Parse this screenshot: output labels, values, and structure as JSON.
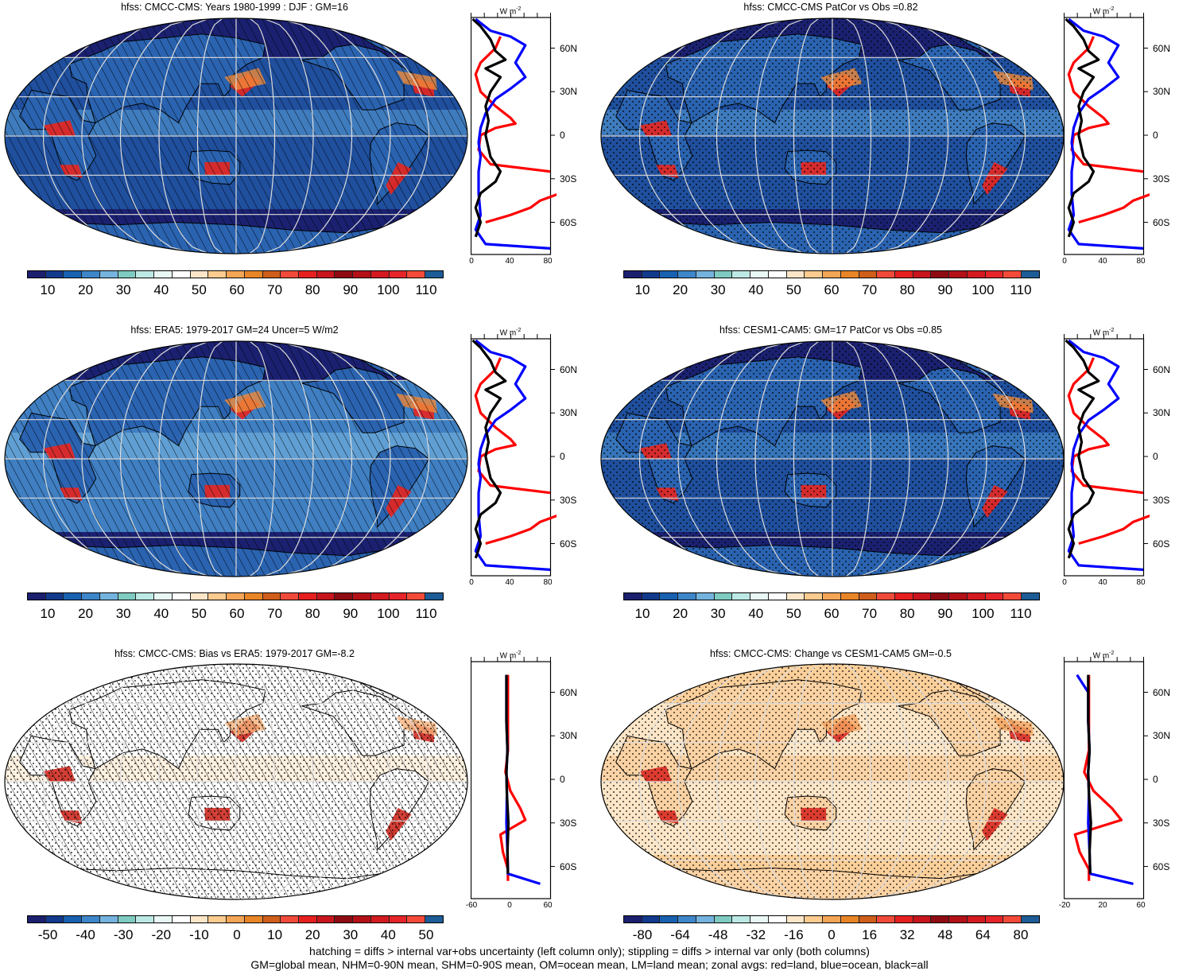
{
  "figure": {
    "panels": [
      {
        "id": "p1",
        "title": "hfss: CMCC-CMS: Years 1980-1999 : DJF : GM=16",
        "colorbar_labels": [
          "10",
          "20",
          "30",
          "40",
          "50",
          "60",
          "70",
          "80",
          "90",
          "100",
          "110"
        ],
        "colorbar_colors": [
          "#1a237e",
          "#0d47a1",
          "#1565c0",
          "#3a86c8",
          "#6fb2df",
          "#7fcfc8",
          "#b4e6e2",
          "#e1f5f3",
          "#fbfbf4",
          "#fbe5c3",
          "#fbc98e",
          "#f1a24e",
          "#e67e22",
          "#c7571b",
          "#ee3d35",
          "#e8181b",
          "#c1121c",
          "#8b0b12",
          "#b0101a",
          "#cf1a20",
          "#e51c24",
          "#f23a2c",
          "#155a9b"
        ],
        "hatching": true,
        "stippling": false,
        "zonal": {
          "unit": "W m-2",
          "x_ticks": [
            "0",
            "40",
            "80"
          ],
          "lat_ticks": [
            "60N",
            "30N",
            "0",
            "30S",
            "60S"
          ]
        }
      },
      {
        "id": "p2",
        "title": "hfss: CMCC-CMS PatCor vs Obs =0.82",
        "colorbar_labels": [
          "10",
          "20",
          "30",
          "40",
          "50",
          "60",
          "70",
          "80",
          "90",
          "100",
          "110"
        ],
        "hatching": false,
        "stippling": true,
        "zonal": {
          "unit": "W m-2",
          "x_ticks": [
            "0",
            "40",
            "80"
          ],
          "lat_ticks": [
            "60N",
            "30N",
            "0",
            "30S",
            "60S"
          ]
        }
      },
      {
        "id": "p3",
        "title": "hfss: ERA5: 1979-2017 GM=24 Uncer=5 W/m2",
        "colorbar_labels": [
          "10",
          "20",
          "30",
          "40",
          "50",
          "60",
          "70",
          "80",
          "90",
          "100",
          "110"
        ],
        "hatching": true,
        "stippling": false,
        "zonal": {
          "unit": "W m-2",
          "x_ticks": [
            "0",
            "40",
            "80"
          ],
          "lat_ticks": [
            "60N",
            "30N",
            "0",
            "30S",
            "60S"
          ]
        }
      },
      {
        "id": "p4",
        "title": "hfss: CESM1-CAM5: GM=17 PatCor vs Obs =0.85",
        "colorbar_labels": [
          "10",
          "20",
          "30",
          "40",
          "50",
          "60",
          "70",
          "80",
          "90",
          "100",
          "110"
        ],
        "hatching": false,
        "stippling": true,
        "zonal": {
          "unit": "W m-2",
          "x_ticks": [
            "0",
            "40",
            "80"
          ],
          "lat_ticks": [
            "60N",
            "30N",
            "0",
            "30S",
            "60S"
          ]
        }
      },
      {
        "id": "p5",
        "title": "hfss: CMCC-CMS: Bias vs ERA5: 1979-2017 GM=-8.2",
        "colorbar_labels": [
          "-50",
          "-40",
          "-30",
          "-20",
          "-10",
          "0",
          "10",
          "20",
          "30",
          "40",
          "50"
        ],
        "colorbar_colors": [
          "#1a237e",
          "#0d47a1",
          "#1565c0",
          "#3a86c8",
          "#6fb2df",
          "#7fcfc8",
          "#b4e6e2",
          "#e1f5f3",
          "#fbfbf4",
          "#fbe5c3",
          "#fbc98e",
          "#f1a24e",
          "#e67e22",
          "#c7571b",
          "#ee3d35",
          "#e8181b",
          "#c1121c",
          "#8b0b12",
          "#b0101a",
          "#cf1a20",
          "#e51c24",
          "#f23a2c",
          "#155a9b"
        ],
        "hatching": true,
        "stippling": true,
        "zonal": {
          "unit": "W m-2",
          "x_ticks": [
            "-60",
            "0",
            "60"
          ],
          "lat_ticks": [
            "60N",
            "30N",
            "0",
            "30S",
            "60S"
          ]
        }
      },
      {
        "id": "p6",
        "title": "hfss: CMCC-CMS: Change vs CESM1-CAM5 GM=-0.5",
        "colorbar_labels": [
          "-80",
          "-64",
          "-48",
          "-32",
          "-16",
          "0",
          "16",
          "32",
          "48",
          "64",
          "80"
        ],
        "hatching": false,
        "stippling": true,
        "zonal": {
          "unit": "W m-2",
          "x_ticks": [
            "-20",
            "20",
            "60"
          ],
          "lat_ticks": [
            "60N",
            "30N",
            "0",
            "30S",
            "60S"
          ]
        }
      }
    ],
    "legend_colors": {
      "land": "#ff0000",
      "ocean": "#0000ff",
      "all": "#000000"
    },
    "footer": {
      "line1": "hatching = diffs > internal var+obs uncertainty (left column only); stippling = diffs > internal var only (both columns)",
      "line2": "GM=global mean, NHM=0-90N mean, SHM=0-90S mean, OM=ocean mean, LM=land mean; zonal avgs: red=land, blue=ocean, black=all"
    }
  }
}
